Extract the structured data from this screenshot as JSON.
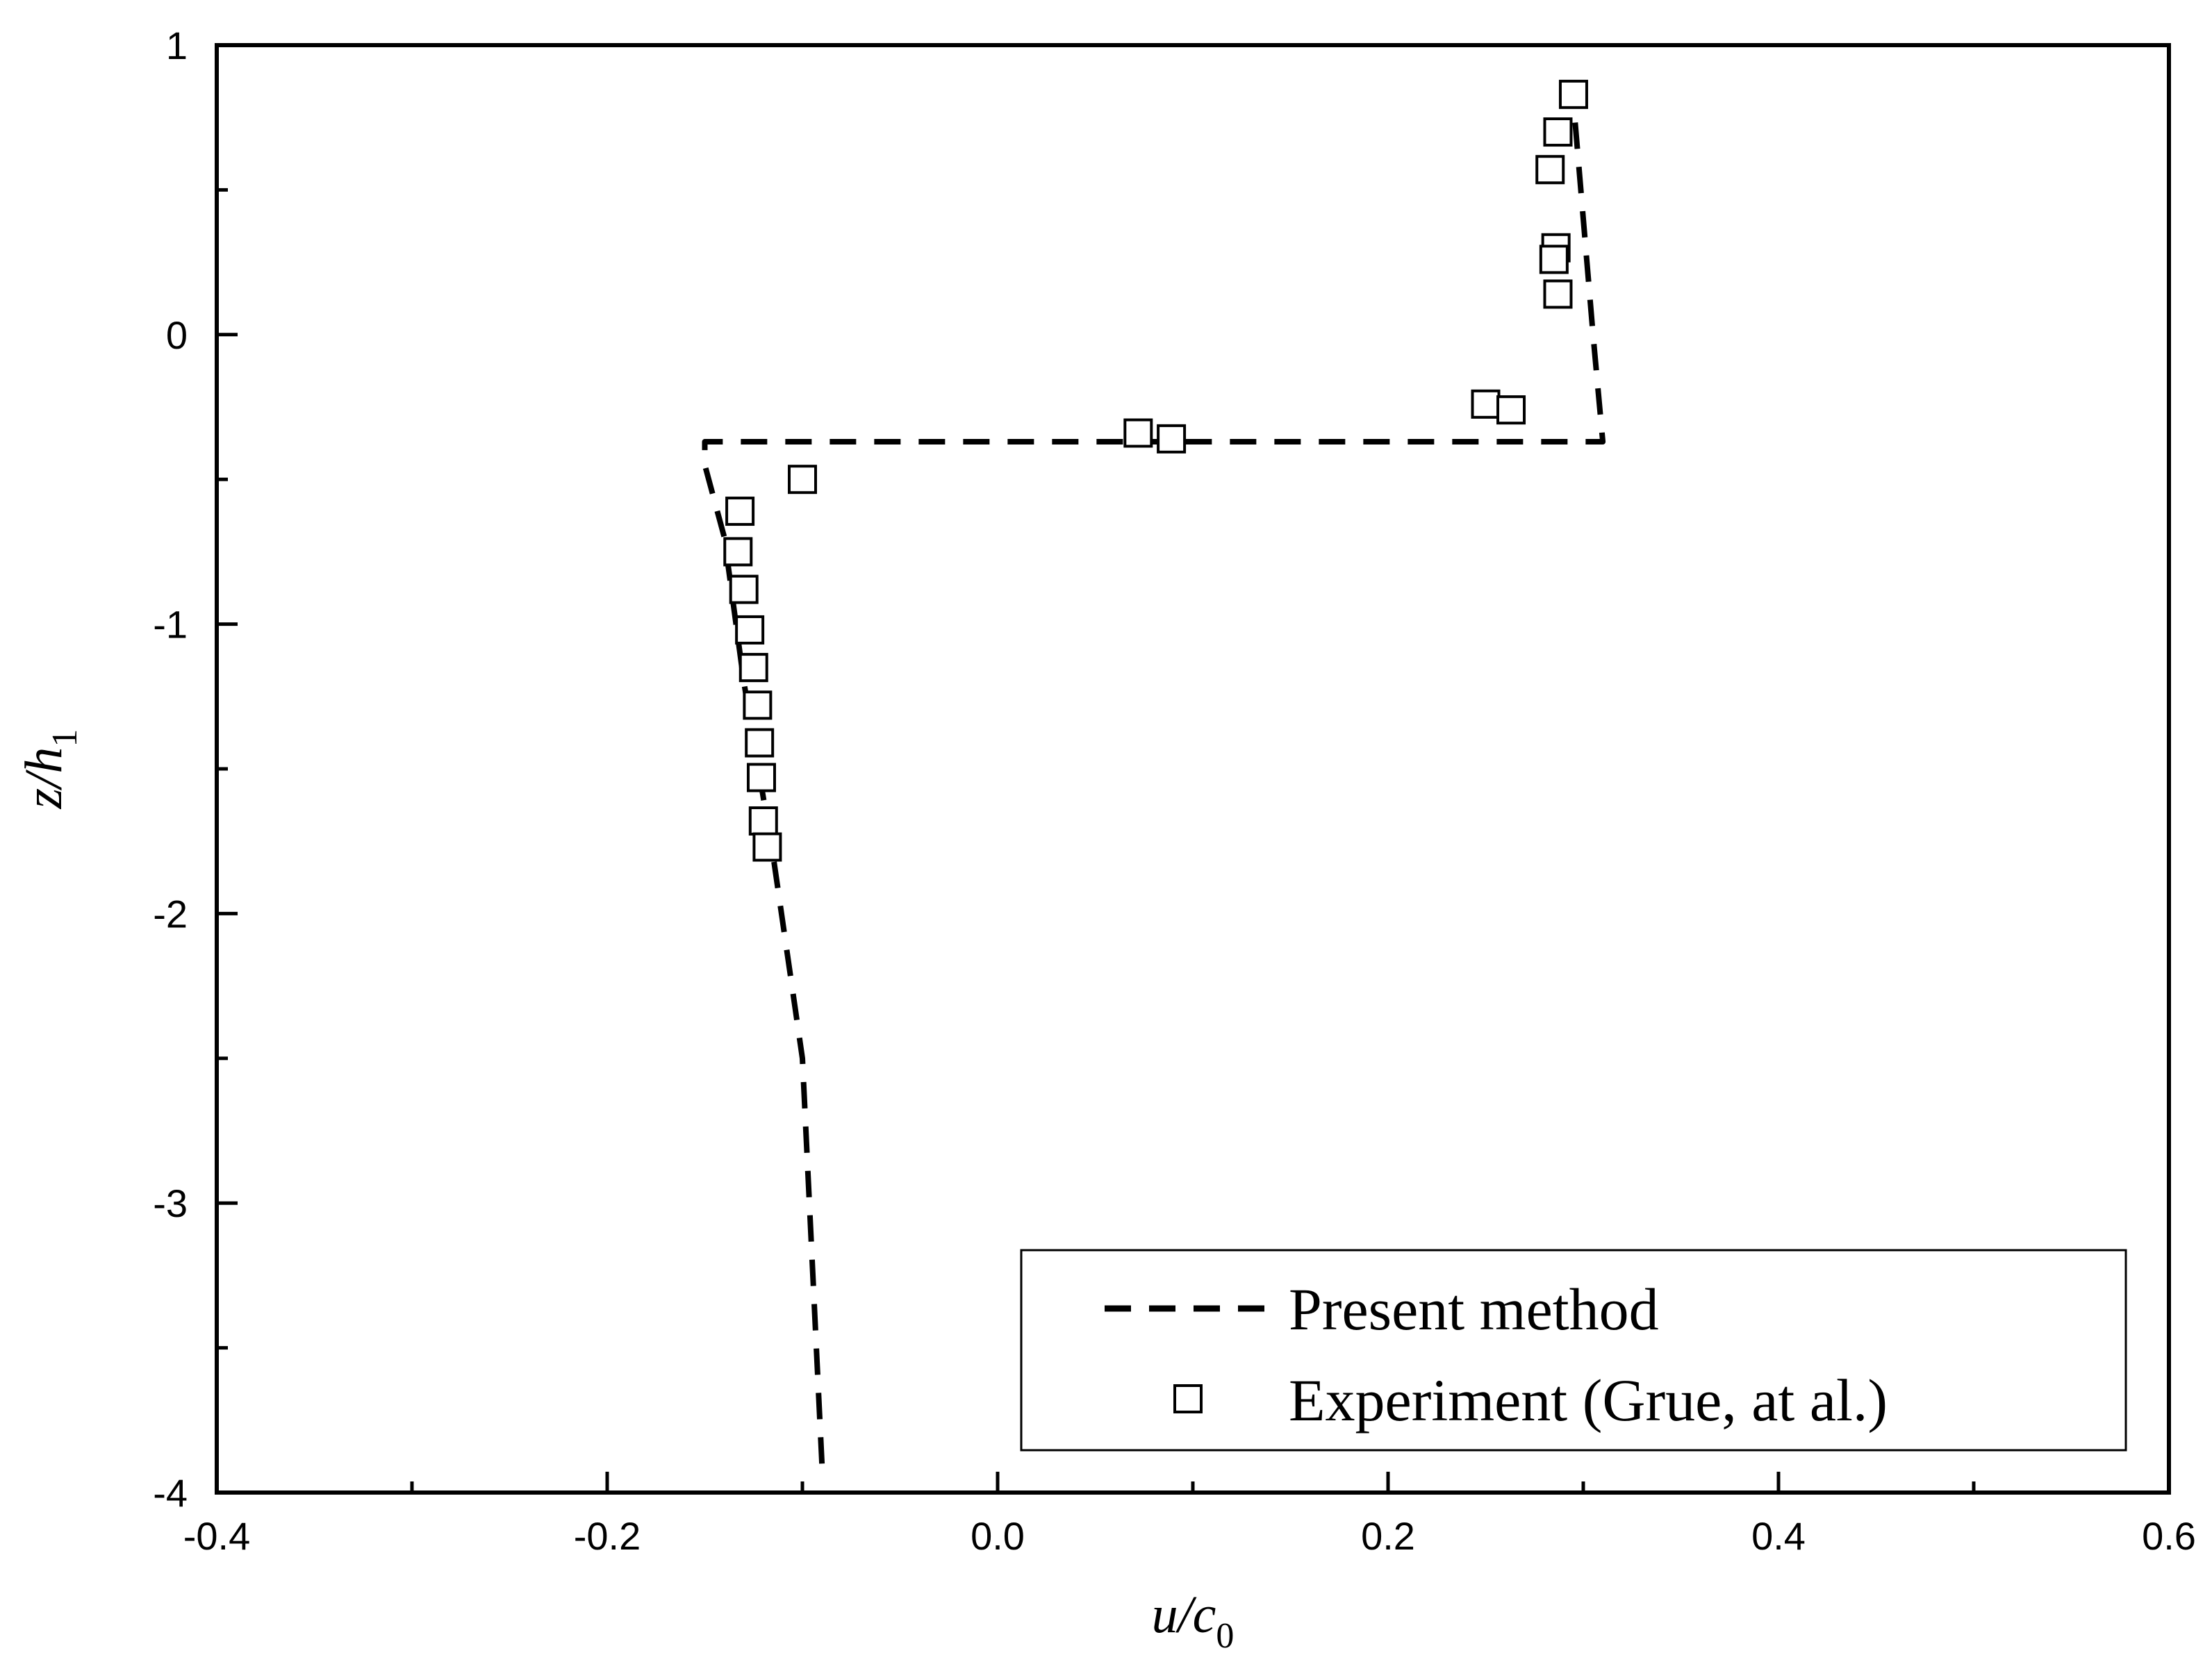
{
  "chart_data": {
    "type": "line",
    "xlabel": {
      "main": "u/c",
      "sub": "0"
    },
    "ylabel": {
      "main": "z/h",
      "sub": "1"
    },
    "xlim": [
      -0.4,
      0.6
    ],
    "ylim": [
      -4,
      1
    ],
    "x_ticks": [
      -0.4,
      -0.2,
      0.0,
      0.2,
      0.4,
      0.6
    ],
    "x_tick_labels": [
      "-0.4",
      "-0.2",
      "0.0",
      "0.2",
      "0.4",
      "0.6"
    ],
    "y_ticks": [
      1,
      0,
      -1,
      -2,
      -3,
      -4
    ],
    "y_tick_labels": [
      "1",
      "0",
      "-1",
      "-2",
      "-3",
      "-4"
    ],
    "y_minor_step": 0.5,
    "x_minor_step": 0.1,
    "grid": false,
    "legend_position": "bottom-right",
    "series": [
      {
        "name": "Present method",
        "style": "dashed-line",
        "color": "#000000",
        "x": [
          -0.09,
          -0.1,
          -0.115,
          -0.13,
          -0.14,
          -0.15,
          -0.15,
          0.0,
          0.1,
          0.2,
          0.28,
          0.31,
          0.305,
          0.3,
          0.295
        ],
        "y": [
          -3.9,
          -2.5,
          -1.8,
          -1.2,
          -0.7,
          -0.45,
          -0.37,
          -0.37,
          -0.37,
          -0.37,
          -0.37,
          -0.37,
          0.0,
          0.4,
          0.8
        ]
      },
      {
        "name": "Experiment (Grue, at al.)",
        "style": "open-square-marker",
        "color": "#000000",
        "x": [
          0.295,
          0.287,
          0.283,
          0.286,
          0.285,
          0.287,
          0.25,
          0.263,
          0.072,
          0.089,
          -0.1,
          -0.132,
          -0.133,
          -0.13,
          -0.127,
          -0.125,
          -0.123,
          -0.122,
          -0.121,
          -0.12,
          -0.118
        ],
        "y": [
          0.83,
          0.7,
          0.57,
          0.3,
          0.26,
          0.14,
          -0.24,
          -0.26,
          -0.34,
          -0.36,
          -0.5,
          -0.61,
          -0.75,
          -0.88,
          -1.02,
          -1.15,
          -1.28,
          -1.41,
          -1.53,
          -1.68,
          -1.77
        ]
      }
    ]
  }
}
